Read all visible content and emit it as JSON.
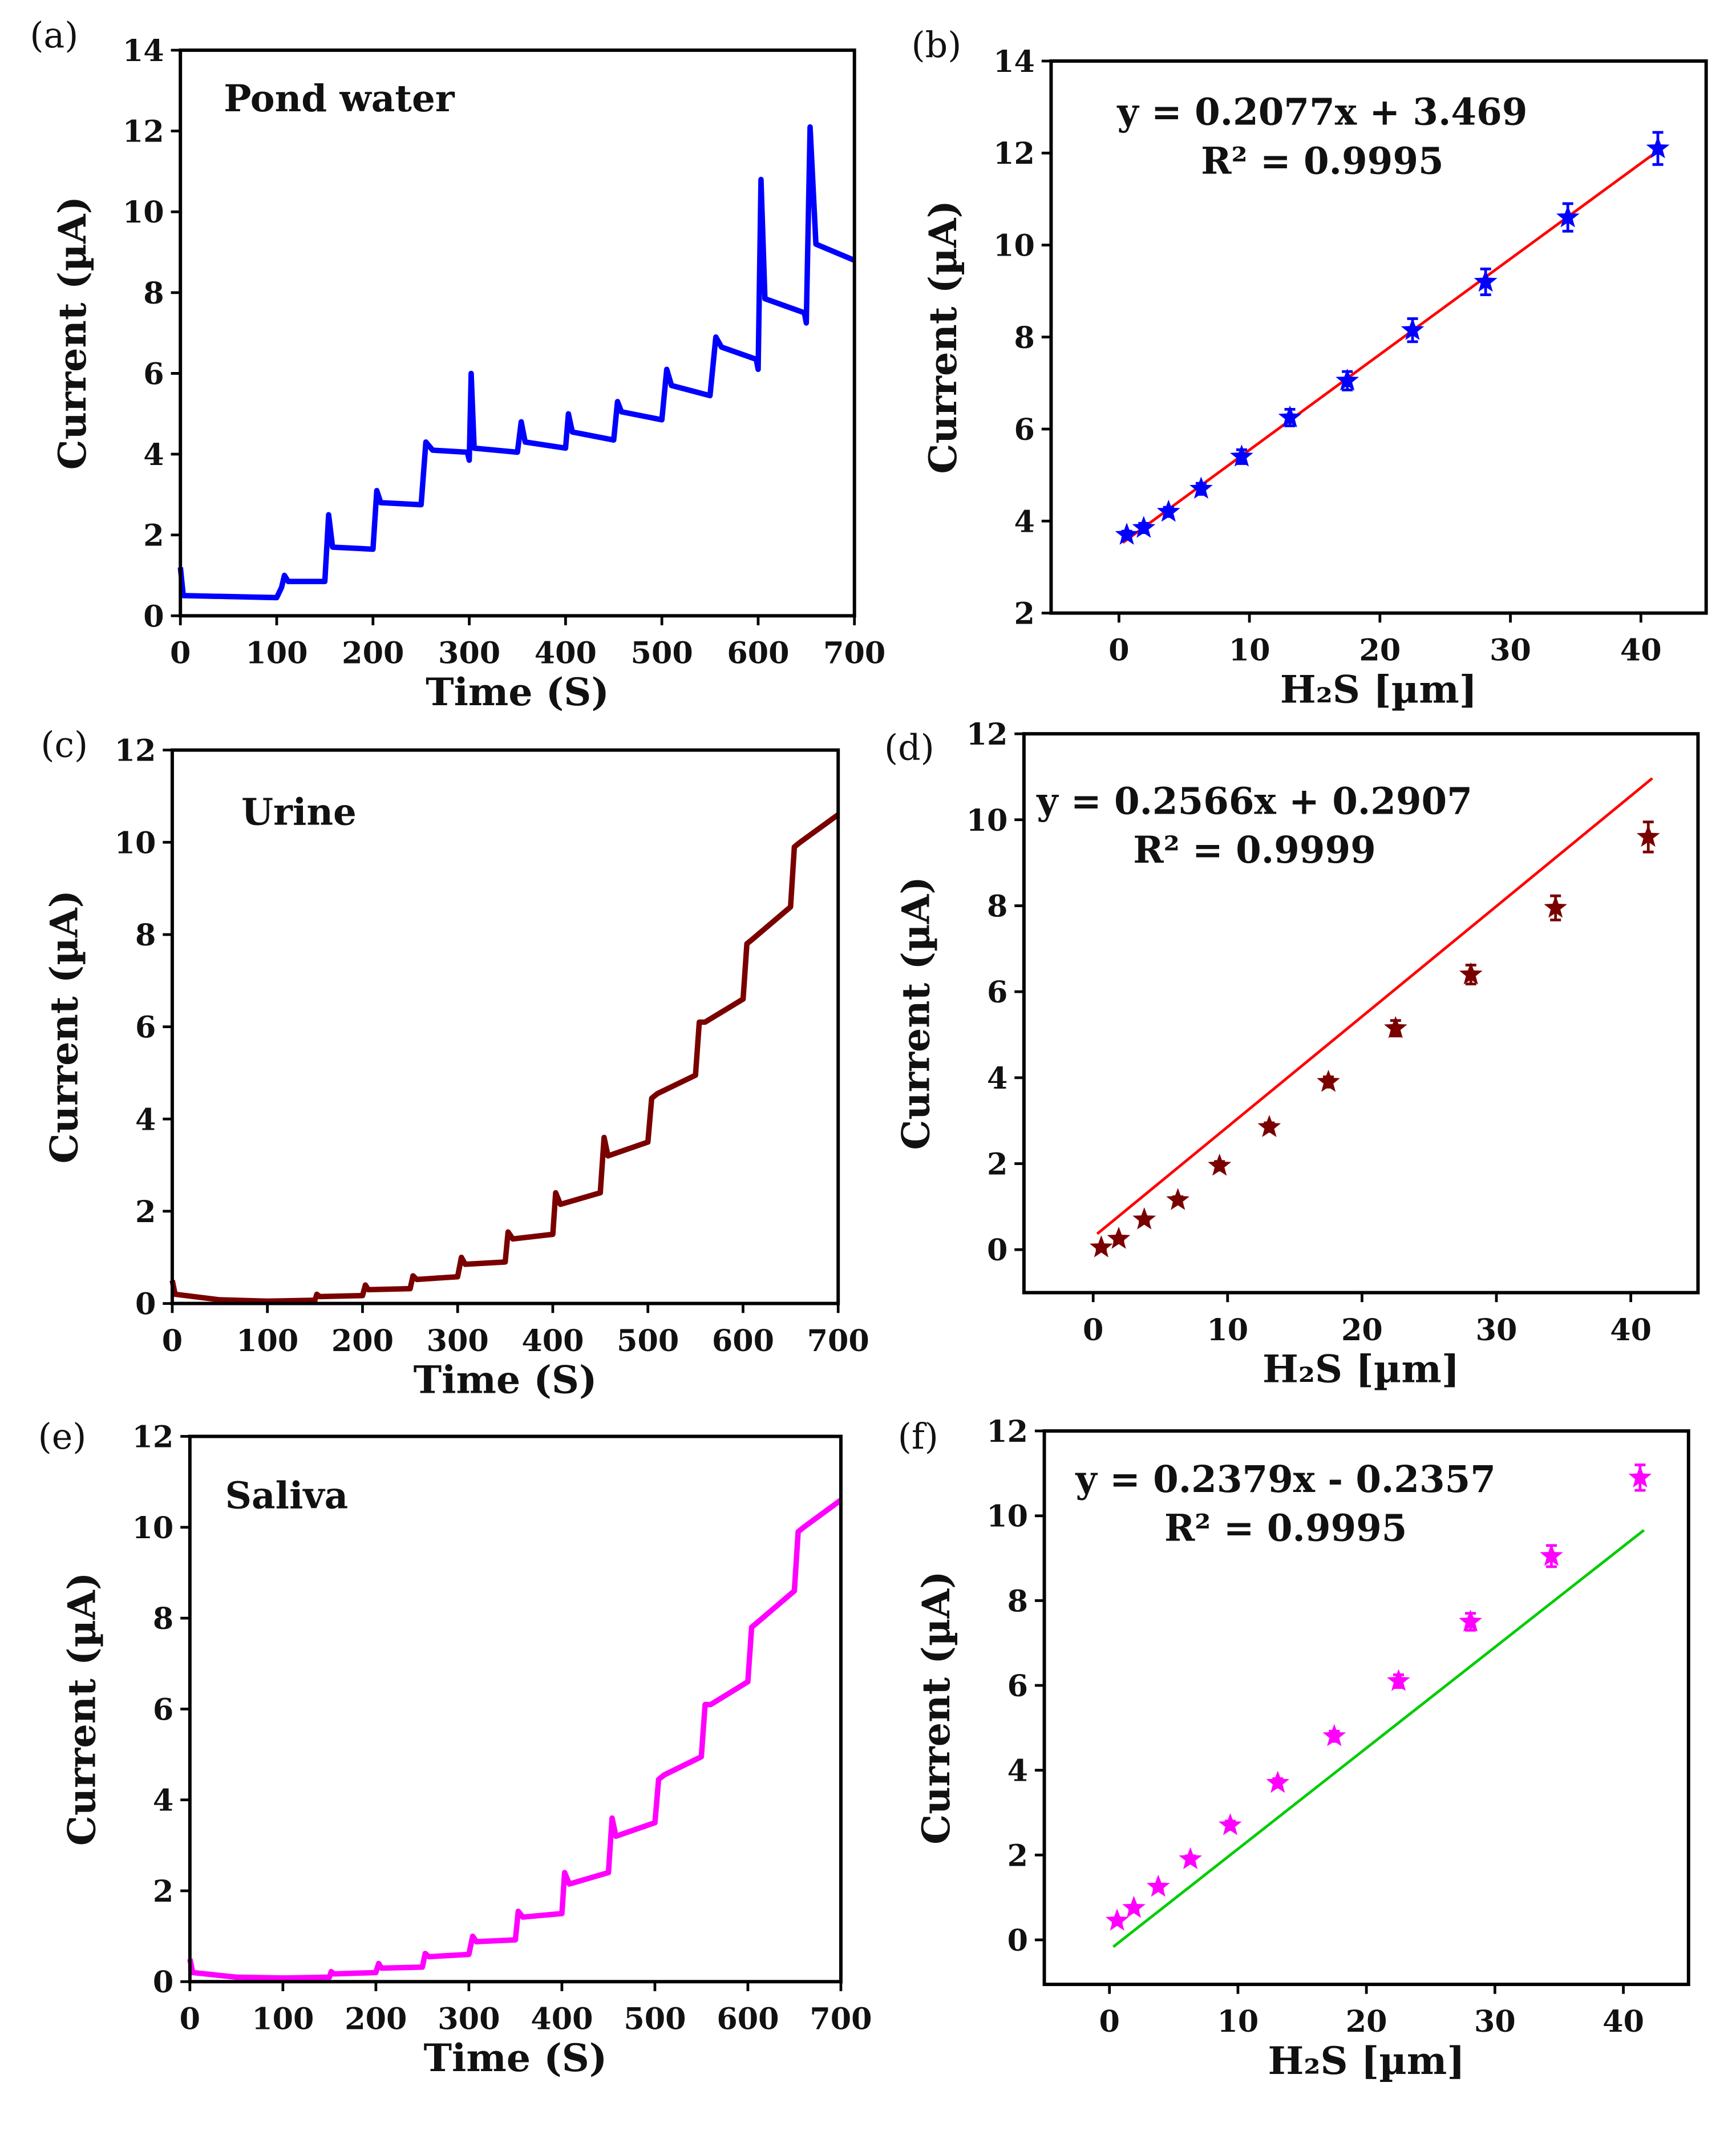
{
  "chart_data": [
    {
      "id": "a",
      "panel_label": "(a)",
      "type": "line",
      "annotation": "Pond water",
      "xlabel": "Time (S)",
      "ylabel": "Current (µA)",
      "xlim": [
        0,
        700
      ],
      "ylim": [
        0,
        14
      ],
      "xticks": [
        0,
        100,
        200,
        300,
        400,
        500,
        600,
        700
      ],
      "yticks": [
        0,
        2,
        4,
        6,
        8,
        10,
        12,
        14
      ],
      "color": "#0000ff",
      "points": [
        [
          0,
          1.2
        ],
        [
          3,
          0.5
        ],
        [
          100,
          0.45
        ],
        [
          105,
          0.7
        ],
        [
          108,
          1.0
        ],
        [
          112,
          0.85
        ],
        [
          150,
          0.85
        ],
        [
          154,
          2.5
        ],
        [
          158,
          1.7
        ],
        [
          200,
          1.65
        ],
        [
          204,
          3.1
        ],
        [
          208,
          2.8
        ],
        [
          250,
          2.75
        ],
        [
          255,
          4.3
        ],
        [
          262,
          4.1
        ],
        [
          298,
          4.05
        ],
        [
          300,
          3.85
        ],
        [
          302,
          6.0
        ],
        [
          305,
          4.15
        ],
        [
          350,
          4.05
        ],
        [
          354,
          4.8
        ],
        [
          358,
          4.3
        ],
        [
          400,
          4.15
        ],
        [
          403,
          5.0
        ],
        [
          407,
          4.55
        ],
        [
          450,
          4.35
        ],
        [
          454,
          5.3
        ],
        [
          458,
          5.05
        ],
        [
          500,
          4.85
        ],
        [
          505,
          6.1
        ],
        [
          510,
          5.7
        ],
        [
          550,
          5.45
        ],
        [
          556,
          6.9
        ],
        [
          562,
          6.65
        ],
        [
          598,
          6.35
        ],
        [
          600,
          6.1
        ],
        [
          603,
          10.8
        ],
        [
          607,
          7.85
        ],
        [
          648,
          7.5
        ],
        [
          650,
          7.25
        ],
        [
          654,
          12.1
        ],
        [
          660,
          9.2
        ],
        [
          700,
          8.8
        ]
      ]
    },
    {
      "id": "b",
      "panel_label": "(b)",
      "type": "scatter",
      "equation": "y = 0.2077x + 3.469",
      "r2": "R² = 0.9995",
      "xlabel": "H₂S [µm]",
      "ylabel": "Current (µA)",
      "xlim": [
        -5.2,
        45
      ],
      "ylim": [
        2,
        14
      ],
      "xticks": [
        0,
        10,
        20,
        30,
        40
      ],
      "yticks": [
        2,
        4,
        6,
        8,
        10,
        12,
        14
      ],
      "color": "#0000ff",
      "fit_color": "#ff0000",
      "slope": 0.2077,
      "intercept": 3.469,
      "x": [
        0.6,
        1.9,
        3.8,
        6.3,
        9.4,
        13.1,
        17.5,
        22.5,
        28.1,
        34.4,
        41.3
      ],
      "y": [
        3.7,
        3.85,
        4.2,
        4.7,
        5.4,
        6.25,
        7.05,
        8.15,
        9.2,
        10.6,
        12.1
      ],
      "err": [
        0.08,
        0.1,
        0.1,
        0.12,
        0.15,
        0.18,
        0.2,
        0.25,
        0.28,
        0.3,
        0.35
      ]
    },
    {
      "id": "c",
      "panel_label": "(c)",
      "type": "line",
      "annotation": "Urine",
      "xlabel": "Time (S)",
      "ylabel": "Current (µA)",
      "xlim": [
        0,
        700
      ],
      "ylim": [
        0,
        12
      ],
      "xticks": [
        0,
        100,
        200,
        300,
        400,
        500,
        600,
        700
      ],
      "yticks": [
        0,
        2,
        4,
        6,
        8,
        10,
        12
      ],
      "color": "#7a0000",
      "points": [
        [
          0,
          0.5
        ],
        [
          3,
          0.2
        ],
        [
          50,
          0.08
        ],
        [
          100,
          0.05
        ],
        [
          150,
          0.07
        ],
        [
          152,
          0.2
        ],
        [
          155,
          0.15
        ],
        [
          200,
          0.17
        ],
        [
          203,
          0.4
        ],
        [
          206,
          0.3
        ],
        [
          250,
          0.32
        ],
        [
          253,
          0.6
        ],
        [
          257,
          0.52
        ],
        [
          300,
          0.58
        ],
        [
          304,
          1.0
        ],
        [
          308,
          0.85
        ],
        [
          350,
          0.9
        ],
        [
          353,
          1.55
        ],
        [
          358,
          1.4
        ],
        [
          400,
          1.5
        ],
        [
          403,
          2.4
        ],
        [
          408,
          2.15
        ],
        [
          450,
          2.4
        ],
        [
          454,
          3.6
        ],
        [
          458,
          3.2
        ],
        [
          500,
          3.5
        ],
        [
          504,
          4.45
        ],
        [
          510,
          4.55
        ],
        [
          550,
          4.95
        ],
        [
          554,
          6.1
        ],
        [
          560,
          6.1
        ],
        [
          600,
          6.6
        ],
        [
          604,
          7.8
        ],
        [
          610,
          7.9
        ],
        [
          650,
          8.6
        ],
        [
          654,
          9.9
        ],
        [
          660,
          10.0
        ],
        [
          700,
          10.6
        ]
      ]
    },
    {
      "id": "d",
      "panel_label": "(d)",
      "type": "scatter",
      "equation": "y = 0.2566x + 0.2907",
      "r2": "R² = 0.9999",
      "xlabel": "H₂S [µm]",
      "ylabel": "Current (µA)",
      "xlim": [
        -5.15,
        45
      ],
      "ylim": [
        -1,
        12
      ],
      "xticks": [
        0,
        10,
        20,
        30,
        40
      ],
      "yticks": [
        0,
        2,
        4,
        6,
        8,
        10,
        12
      ],
      "color": "#7a0000",
      "fit_color": "#ff0000",
      "slope": 0.2566,
      "intercept": 0.2907,
      "x": [
        0.6,
        1.9,
        3.8,
        6.3,
        9.4,
        13.1,
        17.5,
        22.5,
        28.1,
        34.4,
        41.3
      ],
      "y": [
        0.05,
        0.25,
        0.7,
        1.15,
        1.95,
        2.85,
        3.9,
        5.15,
        6.4,
        7.95,
        9.6
      ],
      "err": [
        0.05,
        0.05,
        0.06,
        0.08,
        0.1,
        0.1,
        0.12,
        0.18,
        0.22,
        0.28,
        0.35
      ]
    },
    {
      "id": "e",
      "panel_label": "(e)",
      "type": "line",
      "annotation": "Saliva",
      "xlabel": "Time (S)",
      "ylabel": "Current (µA)",
      "xlim": [
        0,
        700
      ],
      "ylim": [
        0,
        12
      ],
      "xticks": [
        0,
        100,
        200,
        300,
        400,
        500,
        600,
        700
      ],
      "yticks": [
        0,
        2,
        4,
        6,
        8,
        10,
        12
      ],
      "color": "#ff00ff",
      "points": [
        [
          0,
          0.5
        ],
        [
          3,
          0.2
        ],
        [
          50,
          0.1
        ],
        [
          100,
          0.08
        ],
        [
          150,
          0.1
        ],
        [
          152,
          0.22
        ],
        [
          155,
          0.17
        ],
        [
          200,
          0.2
        ],
        [
          203,
          0.4
        ],
        [
          206,
          0.3
        ],
        [
          250,
          0.32
        ],
        [
          253,
          0.62
        ],
        [
          257,
          0.55
        ],
        [
          300,
          0.6
        ],
        [
          304,
          1.0
        ],
        [
          308,
          0.88
        ],
        [
          350,
          0.92
        ],
        [
          353,
          1.55
        ],
        [
          358,
          1.42
        ],
        [
          400,
          1.5
        ],
        [
          403,
          2.4
        ],
        [
          408,
          2.15
        ],
        [
          450,
          2.4
        ],
        [
          454,
          3.6
        ],
        [
          458,
          3.2
        ],
        [
          500,
          3.5
        ],
        [
          504,
          4.45
        ],
        [
          510,
          4.55
        ],
        [
          550,
          4.95
        ],
        [
          554,
          6.1
        ],
        [
          560,
          6.1
        ],
        [
          600,
          6.6
        ],
        [
          604,
          7.8
        ],
        [
          610,
          7.9
        ],
        [
          650,
          8.6
        ],
        [
          654,
          9.9
        ],
        [
          660,
          10.0
        ],
        [
          700,
          10.6
        ]
      ]
    },
    {
      "id": "f",
      "panel_label": "(f)",
      "type": "scatter",
      "equation": "y = 0.2379x - 0.2357",
      "r2": "R² = 0.9995",
      "xlabel": "H₂S [µm]",
      "ylabel": "Current (µA)",
      "xlim": [
        -5.07,
        45.07
      ],
      "ylim": [
        -1.05,
        12
      ],
      "xticks": [
        0,
        10,
        20,
        30,
        40
      ],
      "yticks": [
        0,
        2,
        4,
        6,
        8,
        10,
        12
      ],
      "color": "#ff00ff",
      "fit_color": "#00cc00",
      "slope": 0.2379,
      "intercept": -0.2357,
      "x": [
        0.6,
        1.9,
        3.8,
        6.3,
        9.4,
        13.1,
        17.5,
        22.5,
        28.1,
        34.4,
        41.3
      ],
      "y": [
        0.45,
        0.75,
        1.25,
        1.9,
        2.7,
        3.7,
        4.8,
        6.1,
        7.5,
        9.05,
        10.9
      ],
      "err": [
        0.05,
        0.05,
        0.06,
        0.08,
        0.1,
        0.1,
        0.12,
        0.15,
        0.2,
        0.25,
        0.3
      ]
    }
  ]
}
